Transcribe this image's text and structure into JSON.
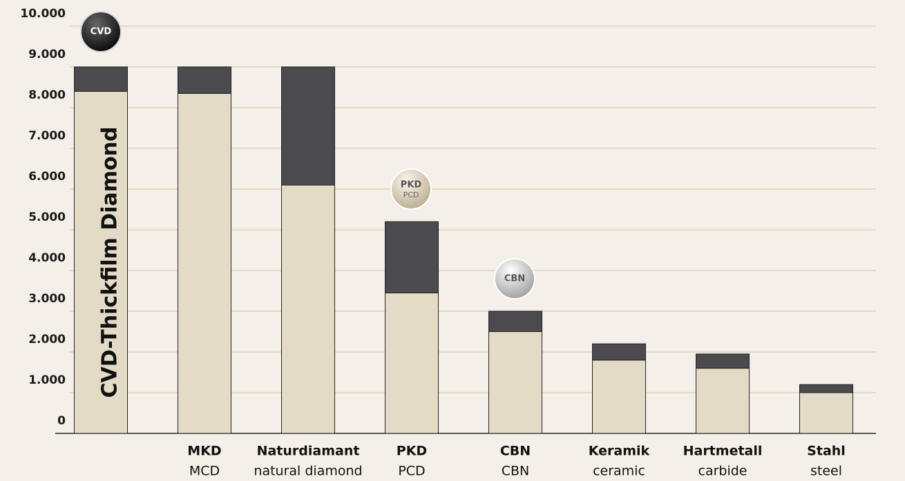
{
  "chart_data": {
    "type": "bar",
    "stacked": true,
    "categories": [
      null,
      "MKD",
      "Naturdiamant",
      "PKD",
      "CBN",
      "Keramik",
      "Hartmetall",
      "Stahl"
    ],
    "category_translations": [
      null,
      "MCD",
      "natural diamond",
      "PCD",
      "CBN",
      "ceramic",
      "carbide",
      "steel"
    ],
    "series": [
      {
        "color": "#e4dbc6",
        "values": [
          8400,
          8350,
          6100,
          3450,
          2500,
          1800,
          1600,
          1000
        ]
      },
      {
        "color": "#4b4a4f",
        "values": [
          600,
          650,
          2900,
          1750,
          500,
          400,
          350,
          200
        ]
      }
    ],
    "ylim": [
      0,
      10000
    ],
    "yticks": [
      0,
      {
        "value": 1000,
        "label": "1.000"
      },
      {
        "value": 2000,
        "label": "2.000"
      },
      {
        "value": 3000,
        "label": "3.000"
      },
      {
        "value": 4000,
        "label": "4.000"
      },
      {
        "value": 5000,
        "label": "5.000"
      },
      {
        "value": 6000,
        "label": "6.000"
      },
      {
        "value": 7000,
        "label": "7.000"
      },
      {
        "value": 8000,
        "label": "8.000"
      },
      {
        "value": 9000,
        "label": "9.000"
      },
      {
        "value": 10000,
        "label": "10.000"
      }
    ],
    "grid": true,
    "annotations": {
      "bar_text": "CVD-Thickfilm Diamond",
      "badges": [
        {
          "label": "CVD"
        },
        {
          "label": "PKD",
          "sublabel": "PCD"
        },
        {
          "label": "CBN"
        }
      ]
    }
  }
}
